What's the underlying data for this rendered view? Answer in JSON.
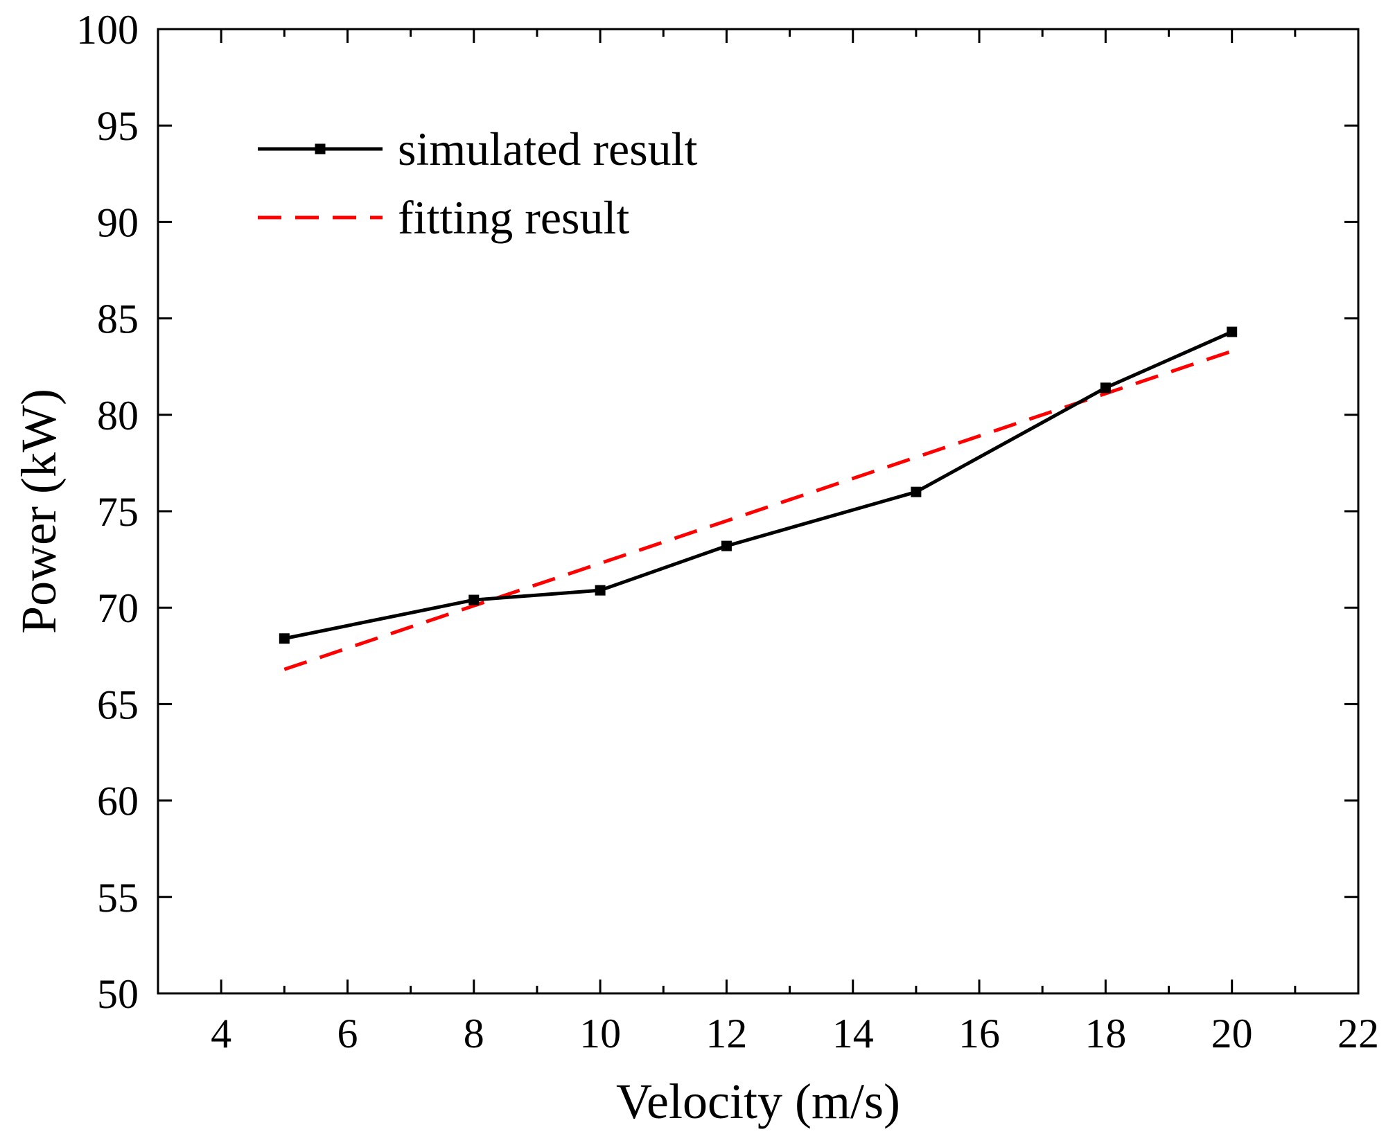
{
  "chart_data": {
    "type": "line",
    "title": "",
    "xlabel": "Velocity (m/s)",
    "ylabel": "Power (kW)",
    "xlim": [
      3,
      22
    ],
    "ylim": [
      50,
      100
    ],
    "xticks": [
      4,
      6,
      8,
      10,
      12,
      14,
      16,
      18,
      20,
      22
    ],
    "xtick_labels": [
      "4",
      "6",
      "8",
      "10",
      "12",
      "14",
      "16",
      "18",
      "20",
      "22"
    ],
    "yticks": [
      50,
      55,
      60,
      65,
      70,
      75,
      80,
      85,
      90,
      95,
      100
    ],
    "ytick_labels": [
      "50",
      "55",
      "60",
      "65",
      "70",
      "75",
      "80",
      "85",
      "90",
      "95",
      "100"
    ],
    "grid": false,
    "legend_position": "top-left",
    "series": [
      {
        "name": "simulated result",
        "style": "solid-with-square-markers",
        "color": "#000000",
        "x": [
          5,
          8,
          10,
          12,
          15,
          18,
          20
        ],
        "y": [
          68.4,
          70.4,
          70.9,
          73.2,
          76.0,
          81.4,
          84.3
        ]
      },
      {
        "name": "fitting result",
        "style": "dashed",
        "color": "#ff0000",
        "x": [
          5,
          20
        ],
        "y": [
          66.8,
          83.3
        ]
      }
    ]
  }
}
